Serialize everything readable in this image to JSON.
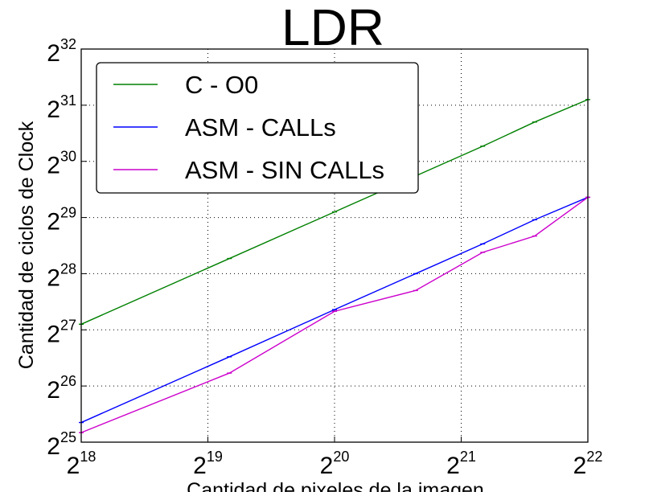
{
  "chart_data": {
    "type": "line",
    "title": "LDR",
    "xlabel": "Cantidad de pixeles de la imagen",
    "ylabel": "Cantidad de ciclos de Clock",
    "x_scale": "log2",
    "y_scale": "log2",
    "xlim_exp": [
      18,
      22
    ],
    "ylim_exp": [
      25,
      32
    ],
    "x_ticks": [
      {
        "base": "2",
        "exp": "18"
      },
      {
        "base": "2",
        "exp": "19"
      },
      {
        "base": "2",
        "exp": "20"
      },
      {
        "base": "2",
        "exp": "21"
      },
      {
        "base": "2",
        "exp": "22"
      }
    ],
    "y_ticks": [
      {
        "base": "2",
        "exp": "25"
      },
      {
        "base": "2",
        "exp": "26"
      },
      {
        "base": "2",
        "exp": "27"
      },
      {
        "base": "2",
        "exp": "28"
      },
      {
        "base": "2",
        "exp": "29"
      },
      {
        "base": "2",
        "exp": "30"
      },
      {
        "base": "2",
        "exp": "31"
      },
      {
        "base": "2",
        "exp": "32"
      }
    ],
    "grid": true,
    "legend_position": "top-left",
    "x_exp": [
      18,
      19.17,
      20,
      20.64,
      21.17,
      21.58,
      22
    ],
    "series": [
      {
        "name": "C - O0",
        "color": "#008000",
        "y_exp": [
          27.1,
          28.27,
          29.1,
          29.74,
          30.27,
          30.7,
          31.1
        ]
      },
      {
        "name": "ASM - CALLs",
        "color": "#0000ff",
        "y_exp": [
          25.35,
          26.52,
          27.36,
          28.0,
          28.53,
          28.96,
          29.36
        ]
      },
      {
        "name": "ASM - SIN CALLs",
        "color": "#cc00cc",
        "y_exp": [
          25.17,
          26.23,
          27.33,
          27.7,
          28.38,
          28.67,
          29.36
        ]
      }
    ]
  }
}
